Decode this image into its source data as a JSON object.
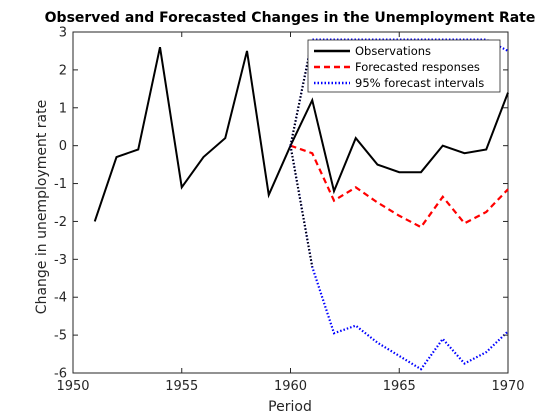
{
  "chart_data": {
    "type": "line",
    "title": "Observed and Forecasted Changes in the Unemployment Rate",
    "xlabel": "Period",
    "ylabel": "Change in unemployment rate",
    "xlim": [
      1950,
      1970
    ],
    "ylim": [
      -6,
      3
    ],
    "xticks": [
      1950,
      1955,
      1960,
      1965,
      1970
    ],
    "yticks": [
      -6,
      -5,
      -4,
      -3,
      -2,
      -1,
      0,
      1,
      2,
      3
    ],
    "grid": false,
    "legend_position": "top-right",
    "series": [
      {
        "name": "Observations",
        "color": "#000000",
        "style": "solid",
        "x": [
          1951,
          1952,
          1953,
          1954,
          1955,
          1956,
          1957,
          1958,
          1959,
          1960,
          1961,
          1962,
          1963,
          1964,
          1965,
          1966,
          1967,
          1968,
          1969,
          1970
        ],
        "y": [
          -2.0,
          -0.3,
          -0.1,
          2.6,
          -1.1,
          -0.3,
          0.2,
          2.5,
          -1.3,
          0.0,
          1.2,
          -1.2,
          0.2,
          -0.5,
          -0.7,
          -0.7,
          0.0,
          -0.2,
          -0.1,
          1.4
        ]
      },
      {
        "name": "Forecasted responses",
        "color": "#ff0000",
        "style": "dashed",
        "x": [
          1960,
          1961,
          1962,
          1963,
          1964,
          1965,
          1966,
          1967,
          1968,
          1969,
          1970
        ],
        "y": [
          0.0,
          -0.2,
          -1.45,
          -1.1,
          -1.5,
          -1.85,
          -2.15,
          -1.35,
          -2.05,
          -1.75,
          -1.15
        ]
      },
      {
        "name": "95% forecast intervals",
        "color": "#0000ff",
        "style": "dotted",
        "x": [
          1960,
          1961,
          1962,
          1963,
          1964,
          1965,
          1966,
          1967,
          1968,
          1969,
          1970
        ],
        "y": [
          0.0,
          -3.2,
          -4.95,
          -4.75,
          -5.2,
          -5.55,
          -5.9,
          -5.1,
          -5.75,
          -5.45,
          -4.9
        ]
      },
      {
        "name": "95% forecast intervals",
        "color": "#0000ff",
        "style": "dotted",
        "x": [
          1960,
          1961,
          1962,
          1963,
          1964,
          1965,
          1966,
          1967,
          1968,
          1969,
          1970
        ],
        "y": [
          0.0,
          2.8,
          2.8,
          2.8,
          2.8,
          2.8,
          2.8,
          2.8,
          2.8,
          2.8,
          2.5
        ]
      }
    ],
    "legend": [
      {
        "label": "Observations",
        "color": "#000000",
        "style": "solid"
      },
      {
        "label": "Forecasted responses",
        "color": "#ff0000",
        "style": "dashed"
      },
      {
        "label": "95% forecast intervals",
        "color": "#0000ff",
        "style": "dotted"
      }
    ]
  }
}
